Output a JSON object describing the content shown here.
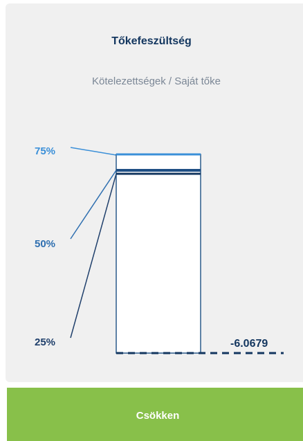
{
  "header": {
    "title": "Tőkefeszültség",
    "subtitle": "Kötelezettségek / Saját tőke"
  },
  "levels": [
    "75%",
    "50%",
    "25%"
  ],
  "value": "-6.0679",
  "button": {
    "label": "Csökken"
  }
}
